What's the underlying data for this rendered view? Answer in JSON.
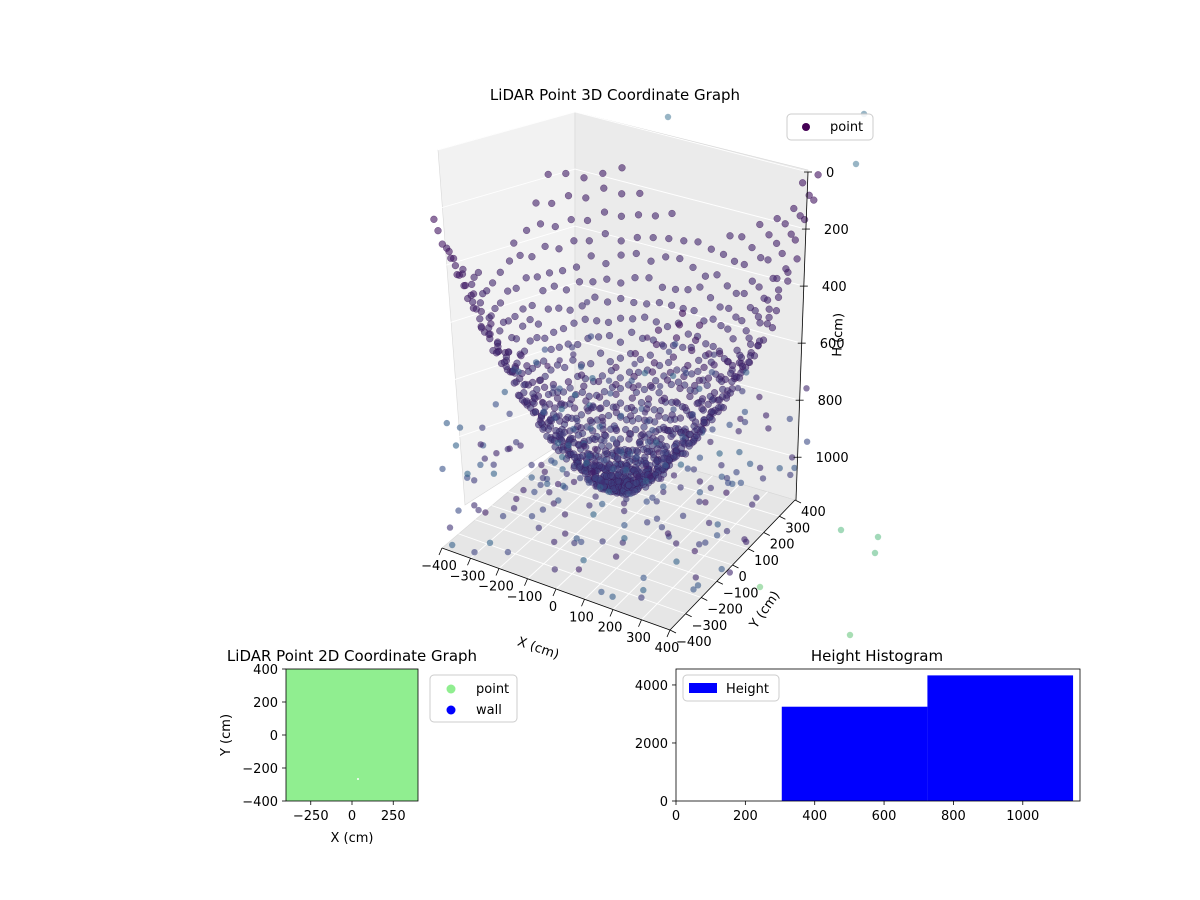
{
  "chart_data": [
    {
      "type": "scatter",
      "projection": "3d",
      "title": "LiDAR Point 3D Coordinate Graph",
      "xlabel": "X (cm)",
      "ylabel": "Y (cm)",
      "zlabel": "H (cm)",
      "x_ticks": [
        "−400",
        "−300",
        "−200",
        "−100",
        "0",
        "100",
        "200",
        "300",
        "400"
      ],
      "y_ticks": [
        "−400",
        "−300",
        "−200",
        "−100",
        "0",
        "100",
        "200",
        "300",
        "400"
      ],
      "z_ticks": [
        "0",
        "200",
        "400",
        "600",
        "800",
        "1000"
      ],
      "xlim": [
        -400,
        400
      ],
      "ylim": [
        -400,
        400
      ],
      "zlim": [
        0,
        1150
      ],
      "z_inverted": true,
      "colormap": "viridis",
      "legend": [
        "point"
      ],
      "legend_position": "top-right",
      "grid": true
    },
    {
      "type": "scatter",
      "title": "LiDAR Point 2D Coordinate Graph",
      "xlabel": "X (cm)",
      "ylabel": "Y (cm)",
      "x_ticks": [
        "−250",
        "0",
        "250"
      ],
      "y_ticks": [
        "400",
        "200",
        "0",
        "−200",
        "−400"
      ],
      "xlim": [
        -400,
        400
      ],
      "ylim": [
        -400,
        400
      ],
      "series": [
        {
          "name": "point",
          "color": "#90ee90"
        },
        {
          "name": "wall",
          "color": "#0000ff"
        }
      ],
      "legend_position": "outside right"
    },
    {
      "type": "bar",
      "title": "Height Histogram",
      "series": [
        {
          "name": "Height",
          "color": "#0000ff"
        }
      ],
      "bins": [
        {
          "start": 0,
          "end": 305,
          "value": 0
        },
        {
          "start": 305,
          "end": 725,
          "value": 3250
        },
        {
          "start": 725,
          "end": 1145,
          "value": 4330
        }
      ],
      "x_ticks": [
        "0",
        "200",
        "400",
        "600",
        "800",
        "1000"
      ],
      "y_ticks": [
        "0",
        "2000",
        "4000"
      ],
      "xlim": [
        0,
        1165
      ],
      "ylim": [
        0,
        4550
      ],
      "legend_position": "top-left"
    }
  ]
}
